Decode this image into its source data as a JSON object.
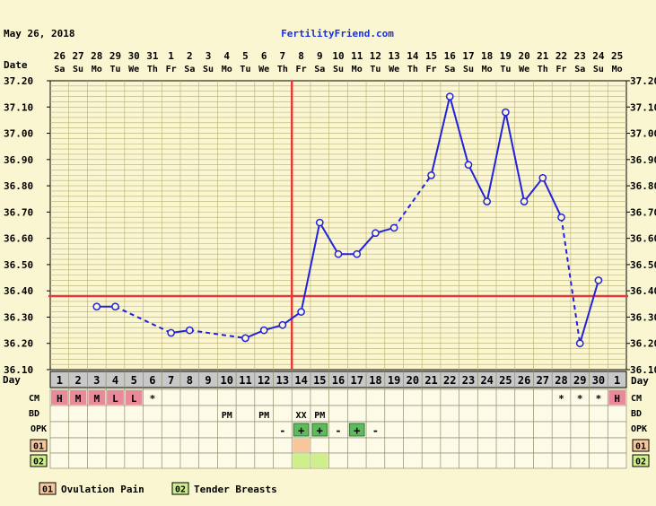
{
  "header": {
    "date": "May 26, 2018",
    "site": "FertilityFriend.com"
  },
  "labels": {
    "date": "Date",
    "day": "Day",
    "cm": "CM",
    "bd": "BD",
    "opk": "OPK",
    "c1": "01",
    "c2": "02"
  },
  "colors": {
    "bg": "#fbf6d2",
    "grid": "#b7ae6e",
    "line": "#2222dd",
    "cover": "#e33a3a",
    "cm_pink": "#e98a9a",
    "opk_green": "#5fb95f",
    "c1": "#f7c79b",
    "c2": "#cfef8d",
    "dayrow": "#c8c8c8"
  },
  "legend": [
    {
      "code": "01",
      "label": "Ovulation Pain"
    },
    {
      "code": "02",
      "label": "Tender Breasts"
    }
  ],
  "chart_data": {
    "type": "line",
    "title": "",
    "ylim": [
      36.1,
      37.2
    ],
    "yticks": [
      "36.10",
      "36.20",
      "36.30",
      "36.40",
      "36.50",
      "36.60",
      "36.70",
      "36.80",
      "36.90",
      "37.00",
      "37.10",
      "37.20"
    ],
    "cycle_days": [
      1,
      2,
      3,
      4,
      5,
      6,
      7,
      8,
      9,
      10,
      11,
      12,
      13,
      14,
      15,
      16,
      17,
      18,
      19,
      20,
      21,
      22,
      23,
      24,
      25,
      26,
      27,
      28,
      29,
      30,
      1
    ],
    "dates": [
      "26",
      "27",
      "28",
      "29",
      "30",
      "31",
      "1",
      "2",
      "3",
      "4",
      "5",
      "6",
      "7",
      "8",
      "9",
      "10",
      "11",
      "12",
      "13",
      "14",
      "15",
      "16",
      "17",
      "18",
      "19",
      "20",
      "21",
      "22",
      "23",
      "24",
      "25"
    ],
    "weekdays": [
      "Sa",
      "Su",
      "Mo",
      "Tu",
      "We",
      "Th",
      "Fr",
      "Sa",
      "Su",
      "Mo",
      "Tu",
      "We",
      "Th",
      "Fr",
      "Sa",
      "Su",
      "Mo",
      "Tu",
      "We",
      "Th",
      "Fr",
      "Sa",
      "Su",
      "Mo",
      "Tu",
      "We",
      "Th",
      "Fr",
      "Sa",
      "Su",
      "Mo"
    ],
    "temps": [
      null,
      null,
      36.34,
      36.34,
      null,
      null,
      36.24,
      36.25,
      null,
      null,
      36.22,
      36.25,
      36.27,
      36.32,
      36.66,
      36.54,
      36.54,
      36.62,
      36.64,
      null,
      36.84,
      37.14,
      36.88,
      36.74,
      37.08,
      36.74,
      36.83,
      36.68,
      36.2,
      36.44,
      null
    ],
    "dashed_segments": [
      [
        4,
        7
      ],
      [
        8,
        11
      ],
      [
        19,
        21
      ],
      [
        28,
        29
      ]
    ],
    "coverline": 36.38,
    "ovulation_day": 14,
    "cm": [
      "H",
      "M",
      "M",
      "L",
      "L",
      "*",
      "",
      "",
      "",
      "",
      "",
      "",
      "",
      "",
      "",
      "",
      "",
      "",
      "",
      "",
      "",
      "",
      "",
      "",
      "",
      "",
      "",
      "*",
      "*",
      "*",
      "H"
    ],
    "bd": [
      "",
      "",
      "",
      "",
      "",
      "",
      "",
      "",
      "",
      "PM",
      "",
      "PM",
      "",
      "XX",
      "PM",
      "",
      "",
      "",
      "",
      "",
      "",
      "",
      "",
      "",
      "",
      "",
      "",
      "",
      "",
      "",
      ""
    ],
    "opk": [
      "",
      "",
      "",
      "",
      "",
      "",
      "",
      "",
      "",
      "",
      "",
      "",
      "-",
      "+",
      "+",
      "-",
      "+",
      "-",
      "",
      "",
      "",
      "",
      "",
      "",
      "",
      "",
      "",
      "",
      "",
      "",
      ""
    ],
    "custom1": [
      14
    ],
    "custom2": [
      14,
      15
    ]
  }
}
